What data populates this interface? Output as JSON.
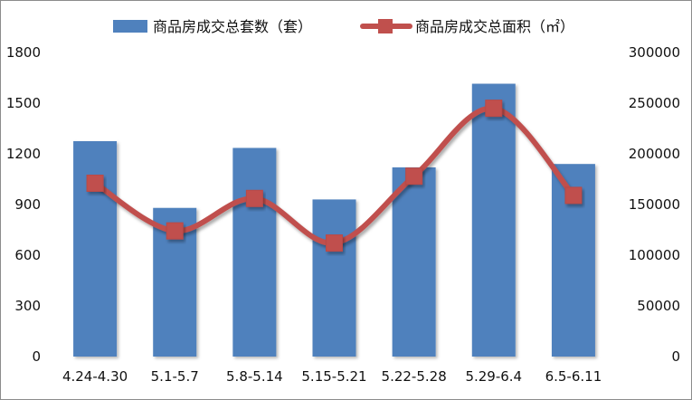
{
  "chart_data": {
    "type": "bar",
    "categories": [
      "4.24-4.30",
      "5.1-5.7",
      "5.8-5.14",
      "5.15-5.21",
      "5.22-5.28",
      "5.29-6.4",
      "6.5-6.11"
    ],
    "series": [
      {
        "name": "商品房成交总套数（套）",
        "type": "bar",
        "axis": "left",
        "color": "#4f81bd",
        "values": [
          1275,
          880,
          1235,
          930,
          1120,
          1615,
          1140
        ]
      },
      {
        "name": "商品房成交总面积（㎡）",
        "type": "line",
        "axis": "right",
        "color": "#c0504d",
        "marker": "square",
        "smooth": true,
        "values": [
          171000,
          124000,
          156000,
          112000,
          178000,
          245000,
          159000
        ]
      }
    ],
    "y_left": {
      "range": [
        0,
        1800
      ],
      "ticks": [
        "0",
        "300",
        "600",
        "900",
        "1200",
        "1500",
        "1800"
      ]
    },
    "y_right": {
      "range": [
        0,
        300000
      ],
      "ticks": [
        "0",
        "50000",
        "100000",
        "150000",
        "200000",
        "250000",
        "300000"
      ]
    },
    "title": "",
    "xlabel": "",
    "ylabel": "",
    "grid": false,
    "legend_position": "top-center"
  }
}
